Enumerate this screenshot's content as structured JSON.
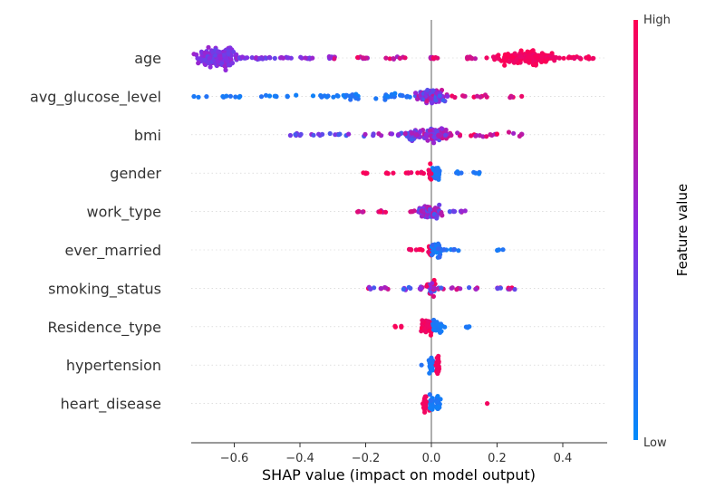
{
  "chart_data": {
    "type": "scatter",
    "subtype": "shap-beeswarm",
    "xlabel": "SHAP value (impact on model output)",
    "xlim": [
      -0.75,
      0.53
    ],
    "xticks": [
      -0.6,
      -0.4,
      -0.2,
      0.0,
      0.2,
      0.4
    ],
    "xtick_labels": [
      "−0.6",
      "−0.4",
      "−0.2",
      "0.0",
      "0.2",
      "0.4"
    ],
    "grid": "horizontal dotted row guides",
    "colorbar": {
      "title": "Feature value",
      "high_label": "High",
      "low_label": "Low",
      "high_color": "#ff0052",
      "mid_color": "#8a2be2",
      "low_color": "#008bfb"
    },
    "features": [
      {
        "name": "age",
        "points": [
          {
            "x": -0.68,
            "y": 0
          },
          {
            "x": -0.66,
            "y": 0.1
          },
          {
            "x": -0.64,
            "y": -0.1
          },
          {
            "x": -0.62,
            "y": 0.05
          },
          {
            "x": -0.58,
            "y": 0
          },
          {
            "x": -0.54,
            "y": 0
          },
          {
            "x": -0.5,
            "y": 0
          },
          {
            "x": -0.45,
            "y": 0
          },
          {
            "x": -0.38,
            "y": 0
          },
          {
            "x": -0.3,
            "y": 0
          },
          {
            "x": -0.2,
            "y": 0
          },
          {
            "x": -0.1,
            "y": 0
          },
          {
            "x": 0.0,
            "y": 0
          },
          {
            "x": 0.12,
            "y": 0
          },
          {
            "x": 0.2,
            "y": 0
          },
          {
            "x": 0.25,
            "y": 0
          },
          {
            "x": 0.3,
            "y": 0
          },
          {
            "x": 0.33,
            "y": 0
          },
          {
            "x": 0.38,
            "y": 0
          },
          {
            "x": 0.44,
            "y": 0
          },
          {
            "x": 0.48,
            "y": 0
          }
        ]
      },
      {
        "name": "avg_glucose_level",
        "points": [
          {
            "x": -0.68,
            "y": 0
          },
          {
            "x": -0.6,
            "y": 0
          },
          {
            "x": -0.5,
            "y": 0
          },
          {
            "x": -0.43,
            "y": 0
          },
          {
            "x": -0.34,
            "y": 0
          },
          {
            "x": -0.3,
            "y": 0
          },
          {
            "x": -0.24,
            "y": 0
          },
          {
            "x": -0.1,
            "y": 0
          },
          {
            "x": -0.02,
            "y": 0
          },
          {
            "x": 0.0,
            "y": 0
          },
          {
            "x": 0.02,
            "y": 0
          },
          {
            "x": 0.05,
            "y": 0
          },
          {
            "x": 0.1,
            "y": 0
          },
          {
            "x": 0.16,
            "y": 0
          },
          {
            "x": 0.25,
            "y": 0
          }
        ]
      },
      {
        "name": "bmi",
        "points": [
          {
            "x": -0.4,
            "y": 0
          },
          {
            "x": -0.35,
            "y": 0
          },
          {
            "x": -0.28,
            "y": 0
          },
          {
            "x": -0.18,
            "y": 0
          },
          {
            "x": -0.1,
            "y": 0
          },
          {
            "x": -0.05,
            "y": 0
          },
          {
            "x": 0.0,
            "y": 0
          },
          {
            "x": 0.03,
            "y": 0
          },
          {
            "x": 0.07,
            "y": 0
          },
          {
            "x": 0.12,
            "y": 0
          },
          {
            "x": 0.19,
            "y": 0
          },
          {
            "x": 0.26,
            "y": 0
          }
        ]
      },
      {
        "name": "gender",
        "points": [
          {
            "x": -0.2,
            "y": 0
          },
          {
            "x": -0.13,
            "y": 0
          },
          {
            "x": -0.07,
            "y": 0
          },
          {
            "x": -0.03,
            "y": 0
          },
          {
            "x": 0.0,
            "y": 0
          },
          {
            "x": 0.02,
            "y": 0
          },
          {
            "x": 0.08,
            "y": 0
          },
          {
            "x": 0.14,
            "y": 0
          }
        ]
      },
      {
        "name": "work_type",
        "points": [
          {
            "x": -0.22,
            "y": 0
          },
          {
            "x": -0.15,
            "y": 0
          },
          {
            "x": -0.06,
            "y": 0
          },
          {
            "x": -0.02,
            "y": 0
          },
          {
            "x": 0.0,
            "y": 0
          },
          {
            "x": 0.02,
            "y": 0
          },
          {
            "x": 0.06,
            "y": 0
          },
          {
            "x": 0.1,
            "y": 0
          }
        ]
      },
      {
        "name": "ever_married",
        "points": [
          {
            "x": -0.06,
            "y": 0
          },
          {
            "x": -0.03,
            "y": 0
          },
          {
            "x": 0.0,
            "y": 0
          },
          {
            "x": 0.02,
            "y": 0
          },
          {
            "x": 0.04,
            "y": 0
          },
          {
            "x": 0.07,
            "y": 0
          },
          {
            "x": 0.21,
            "y": 0
          }
        ]
      },
      {
        "name": "smoking_status",
        "points": [
          {
            "x": -0.18,
            "y": 0
          },
          {
            "x": -0.15,
            "y": 0
          },
          {
            "x": -0.08,
            "y": 0
          },
          {
            "x": -0.03,
            "y": 0
          },
          {
            "x": 0.0,
            "y": 0
          },
          {
            "x": 0.03,
            "y": 0
          },
          {
            "x": 0.08,
            "y": 0
          },
          {
            "x": 0.13,
            "y": 0
          },
          {
            "x": 0.2,
            "y": 0
          },
          {
            "x": 0.24,
            "y": 0
          }
        ]
      },
      {
        "name": "Residence_type",
        "points": [
          {
            "x": -0.1,
            "y": 0
          },
          {
            "x": -0.02,
            "y": 0
          },
          {
            "x": 0.0,
            "y": 0
          },
          {
            "x": 0.02,
            "y": 0
          },
          {
            "x": 0.04,
            "y": 0
          },
          {
            "x": 0.11,
            "y": 0
          }
        ]
      },
      {
        "name": "hypertension",
        "points": [
          {
            "x": -0.03,
            "y": 0
          },
          {
            "x": 0.0,
            "y": 0
          },
          {
            "x": 0.02,
            "y": 0
          }
        ]
      },
      {
        "name": "heart_disease",
        "points": [
          {
            "x": -0.02,
            "y": 0
          },
          {
            "x": 0.0,
            "y": 0
          },
          {
            "x": 0.02,
            "y": 0
          },
          {
            "x": 0.17,
            "y": 0
          }
        ]
      }
    ]
  }
}
